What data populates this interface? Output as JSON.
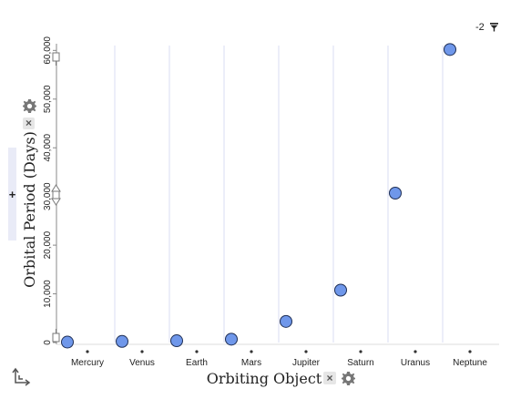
{
  "chart_data": {
    "type": "scatter",
    "categories": [
      "Mercury",
      "Venus",
      "Earth",
      "Mars",
      "Jupiter",
      "Saturn",
      "Uranus",
      "Neptune"
    ],
    "values": [
      88,
      225,
      365,
      687,
      4333,
      10759,
      30687,
      60190
    ],
    "xlabel": "Orbiting Object",
    "ylabel": "Orbital Period (Days)",
    "ylim": [
      0,
      61000
    ],
    "yticks": [
      0,
      10000,
      20000,
      30000,
      40000,
      50000,
      60000
    ],
    "ytick_labels": [
      "0",
      "10,000",
      "20,000",
      "30,000",
      "40,000",
      "50,000",
      "60,000"
    ],
    "grid": "vertical",
    "point_color": "#6f97ea"
  },
  "controls": {
    "filter_value": "-2",
    "add_attribute": "+",
    "remove_label": "×"
  },
  "icons": {
    "filter": "filter-icon",
    "gear": "gear-icon",
    "close": "close-icon",
    "axes": "axes-icon"
  }
}
